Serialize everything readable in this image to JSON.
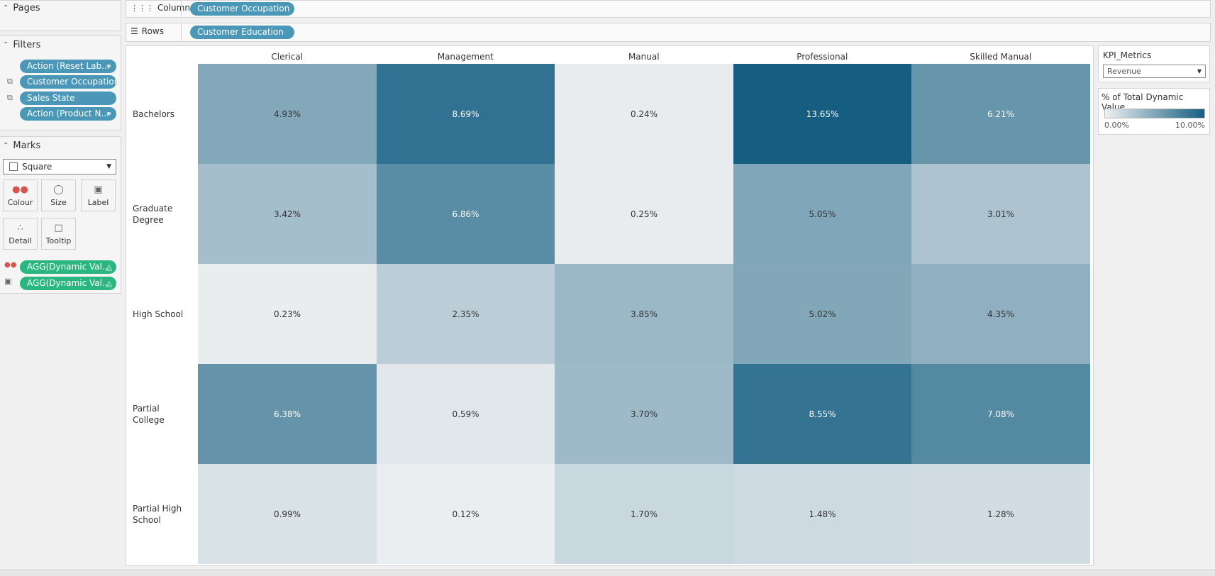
{
  "pages": {
    "title": "Pages"
  },
  "filters": {
    "title": "Filters",
    "items": [
      {
        "label": "Action (Reset Lab...",
        "icon": "link-icon"
      },
      {
        "label": "Customer Occupation",
        "icon": ""
      },
      {
        "label": "Sales State",
        "icon": ""
      },
      {
        "label": "Action (Product N...",
        "icon": "link-icon"
      }
    ]
  },
  "marks": {
    "title": "Marks",
    "type": "Square",
    "buttons": [
      "Colour",
      "Size",
      "Label",
      "Detail",
      "Tooltip"
    ],
    "fields": [
      "AGG(Dynamic Val...",
      "AGG(Dynamic Val..."
    ]
  },
  "shelves": {
    "columns_label": "Columns",
    "columns_pill": "Customer Occupation",
    "rows_label": "Rows",
    "rows_pill": "Customer Education"
  },
  "legend": {
    "param_title": "KPI_Metrics",
    "param_value": "Revenue",
    "color_title": "% of Total Dynamic Value",
    "min_label": "0.00%",
    "max_label": "10.00%",
    "color_low": "#eef0f1",
    "color_high": "#155e82"
  },
  "chart_data": {
    "type": "heatmap",
    "columns": [
      "Clerical",
      "Management",
      "Manual",
      "Professional",
      "Skilled Manual"
    ],
    "rows": [
      "Bachelors",
      "Graduate Degree",
      "High School",
      "Partial College",
      "Partial High School"
    ],
    "values": [
      [
        4.93,
        8.69,
        0.24,
        13.65,
        6.21
      ],
      [
        3.42,
        6.86,
        0.25,
        5.05,
        3.01
      ],
      [
        0.23,
        2.35,
        3.85,
        5.02,
        4.35
      ],
      [
        6.38,
        0.59,
        3.7,
        8.55,
        7.08
      ],
      [
        0.99,
        0.12,
        1.7,
        1.48,
        1.28
      ]
    ],
    "labels": [
      [
        "4.93%",
        "8.69%",
        "0.24%",
        "13.65%",
        "6.21%"
      ],
      [
        "3.42%",
        "6.86%",
        "0.25%",
        "5.05%",
        "3.01%"
      ],
      [
        "0.23%",
        "2.35%",
        "3.85%",
        "5.02%",
        "4.35%"
      ],
      [
        "6.38%",
        "0.59%",
        "3.70%",
        "8.55%",
        "7.08%"
      ],
      [
        "0.99%",
        "0.12%",
        "1.70%",
        "1.48%",
        "1.28%"
      ]
    ],
    "color_range": [
      0,
      10
    ]
  }
}
